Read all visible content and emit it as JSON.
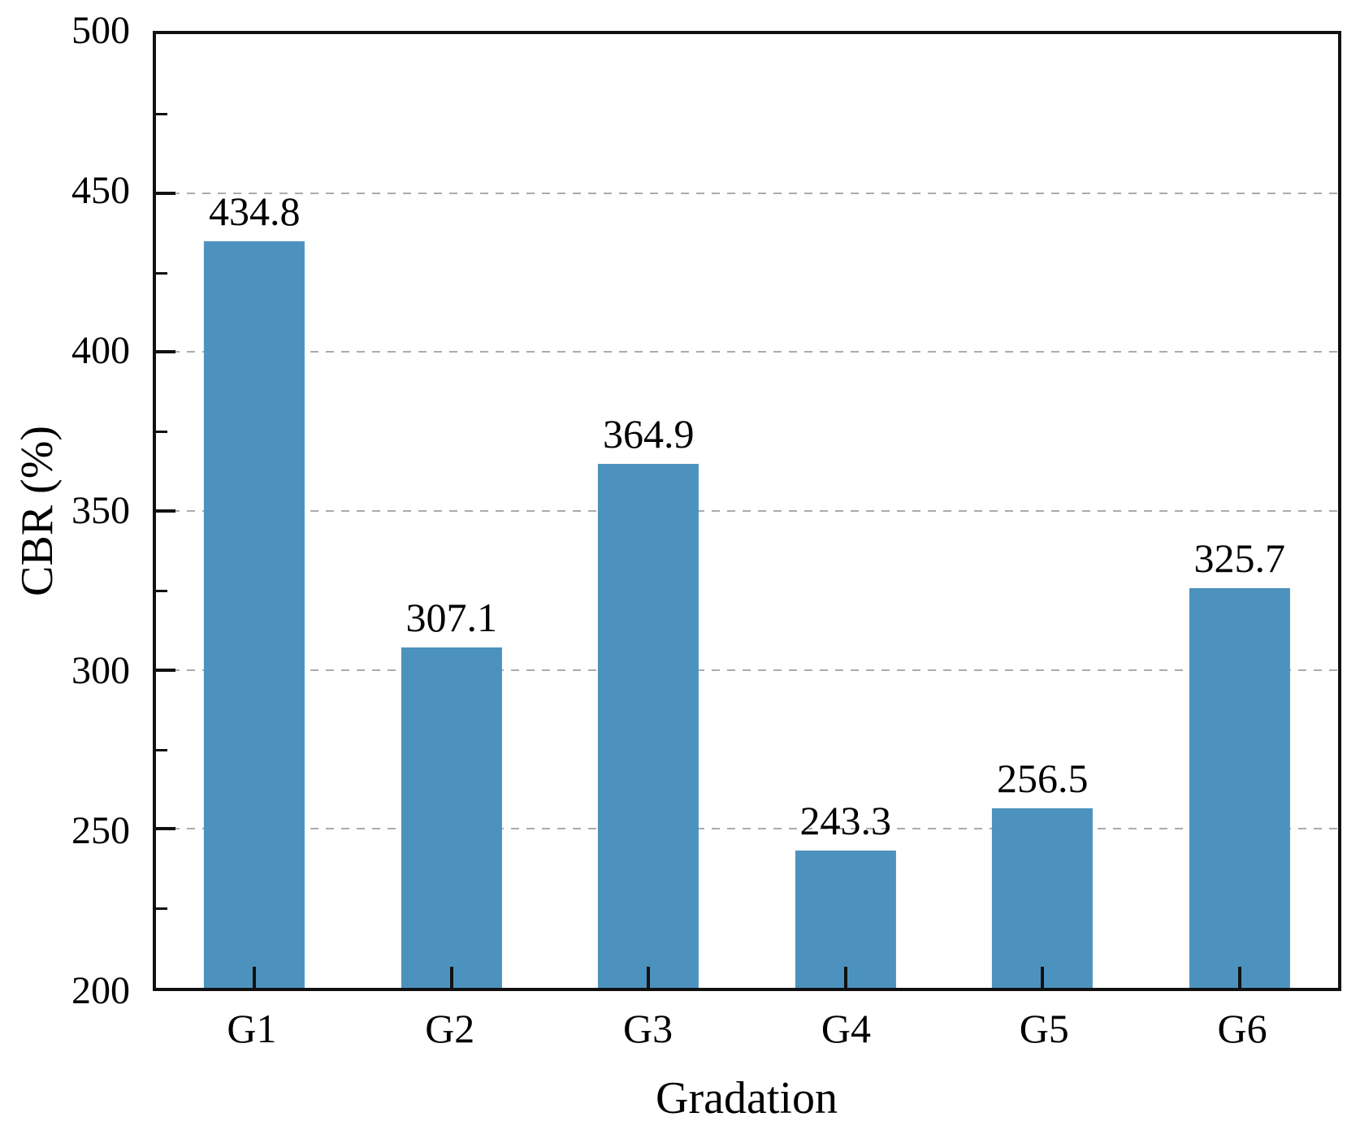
{
  "figure": {
    "background": "#ffffff",
    "text_color": "#000000",
    "frame_color": "#111111",
    "gridline_color": "#ababab"
  },
  "chart_data": {
    "type": "bar",
    "title": "",
    "xlabel": "Gradation",
    "ylabel": "CBR (%)",
    "categories": [
      "G1",
      "G2",
      "G3",
      "G4",
      "G5",
      "G6"
    ],
    "values": [
      434.8,
      307.1,
      364.9,
      243.3,
      256.5,
      325.7
    ],
    "value_labels": [
      "434.8",
      "307.1",
      "364.9",
      "243.3",
      "256.5",
      "325.7"
    ],
    "ylim": [
      200,
      500
    ],
    "yticks": [
      200,
      250,
      300,
      350,
      400,
      450,
      500
    ],
    "ytick_labels": [
      "200",
      "250",
      "300",
      "350",
      "400",
      "450",
      "500"
    ],
    "yminorticks": [
      225,
      275,
      325,
      375,
      425,
      475
    ],
    "grid": {
      "horizontal_at_major_ticks": true,
      "style": "dashed",
      "on": true
    },
    "legend": null,
    "bar_color": "#4D92BE",
    "bar_width_fraction_of_slot": 0.512
  }
}
